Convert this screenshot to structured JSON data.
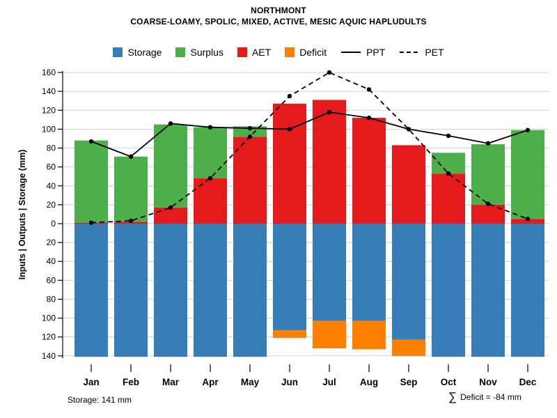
{
  "title": "NORTHMONT",
  "subtitle": "COARSE-LOAMY, SPOLIC, MIXED, ACTIVE, MESIC AQUIC HAPLUDULTS",
  "legend": {
    "storage": "Storage",
    "surplus": "Surplus",
    "aet": "AET",
    "deficit": "Deficit",
    "ppt": "PPT",
    "pet": "PET"
  },
  "colors": {
    "storage": "#377EB8",
    "surplus": "#4DAF4A",
    "aet": "#E41A1C",
    "deficit": "#FF7F00",
    "line": "#000000",
    "grid": "#C9C9C9"
  },
  "footer": {
    "storage_note": "Storage: 141 mm",
    "sigma": "∑",
    "deficit_note": "Deficit = -84 mm"
  },
  "chart_data": {
    "type": "bar",
    "title": "NORTHMONT",
    "subtitle": "COARSE-LOAMY, SPOLIC, MIXED, ACTIVE, MESIC AQUIC HAPLUDULTS",
    "categories": [
      "Jan",
      "Feb",
      "Mar",
      "Apr",
      "May",
      "Jun",
      "Jul",
      "Aug",
      "Sep",
      "Oct",
      "Nov",
      "Dec"
    ],
    "ylabel": "Inputs | Outputs | Storage  (mm)",
    "yaxis": {
      "up_max": 160,
      "down_max": 140,
      "tick_step": 20,
      "tick_labels_absolute": true
    },
    "grid": true,
    "legend_position": "top",
    "legend_order": [
      "Storage",
      "Surplus",
      "AET",
      "Deficit",
      "PPT",
      "PET"
    ],
    "series": [
      {
        "name": "AET",
        "kind": "bar-up",
        "color": "#E41A1C",
        "values": [
          1,
          2,
          17,
          48,
          92,
          127,
          131,
          112,
          83,
          53,
          20,
          5
        ]
      },
      {
        "name": "Surplus",
        "kind": "bar-up",
        "color": "#4DAF4A",
        "values": [
          87,
          69,
          88,
          54,
          11,
          0,
          0,
          0,
          0,
          22,
          64,
          94
        ]
      },
      {
        "name": "Storage",
        "kind": "bar-down",
        "color": "#377EB8",
        "values": [
          141,
          141,
          141,
          141,
          141,
          113,
          103,
          103,
          123,
          141,
          141,
          141
        ]
      },
      {
        "name": "Deficit",
        "kind": "bar-down",
        "color": "#FF7F00",
        "values": [
          0,
          0,
          0,
          0,
          0,
          8,
          29,
          30,
          17,
          0,
          0,
          0
        ]
      },
      {
        "name": "PET",
        "kind": "line",
        "dash": "7 5",
        "color": "#000000",
        "values": [
          1,
          3,
          17,
          48,
          92,
          135,
          160,
          142,
          100,
          53,
          21,
          5
        ]
      },
      {
        "name": "PPT",
        "kind": "line",
        "dash": "",
        "color": "#000000",
        "values": [
          87,
          71,
          106,
          102,
          101,
          100,
          118,
          112,
          100,
          93,
          85,
          99
        ]
      }
    ],
    "annotations": {
      "storage_max_mm": 141,
      "sum_deficit_mm": -84
    }
  }
}
